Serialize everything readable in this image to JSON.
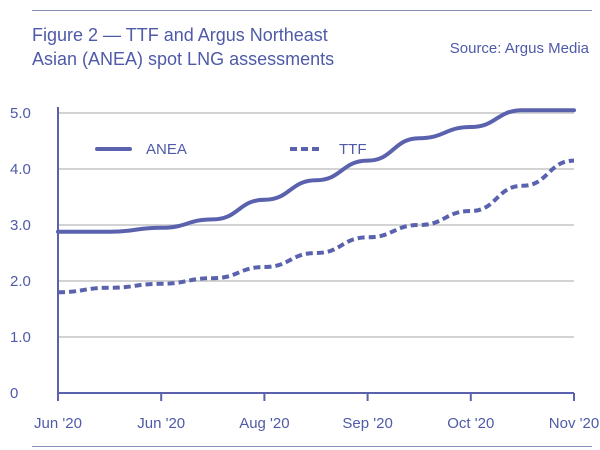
{
  "header": {
    "title_line1": "Figure 2 — TTF and Argus Northeast",
    "title_line2": "Asian (ANEA) spot LNG assessments",
    "source": "Source: Argus Media"
  },
  "chart_data": {
    "type": "line",
    "title": "Figure 2 — TTF and Argus Northeast Asian (ANEA) spot LNG assessments",
    "xlabel": "",
    "ylabel": "",
    "categories": [
      "Jun '20",
      "Jun '20",
      "Aug '20",
      "Sep '20",
      "Oct '20",
      "Nov '20"
    ],
    "y_ticks": [
      "0",
      "1.0",
      "2.0",
      "3.0",
      "4.0",
      "5.0"
    ],
    "ylim": [
      0,
      5.0
    ],
    "grid": true,
    "legend": "top-left",
    "series": [
      {
        "name": "ANEA",
        "style": "solid",
        "x": [
          0,
          0.5,
          1,
          1.5,
          2,
          2.5,
          3,
          3.5,
          4,
          4.5,
          5
        ],
        "y": [
          2.88,
          2.88,
          2.95,
          3.1,
          3.45,
          3.8,
          4.15,
          4.55,
          4.75,
          5.05,
          5.05
        ]
      },
      {
        "name": "TTF",
        "style": "dashed",
        "x": [
          0,
          0.5,
          1,
          1.5,
          2,
          2.5,
          3,
          3.5,
          4,
          4.5,
          5
        ],
        "y": [
          1.8,
          1.88,
          1.95,
          2.05,
          2.25,
          2.5,
          2.78,
          3.0,
          3.25,
          3.7,
          4.15
        ]
      }
    ],
    "colors": {
      "line": "#5a62ae",
      "grid": "#d3d3d3",
      "axis": "#5a62ae",
      "text": "#4f5aa8"
    }
  }
}
